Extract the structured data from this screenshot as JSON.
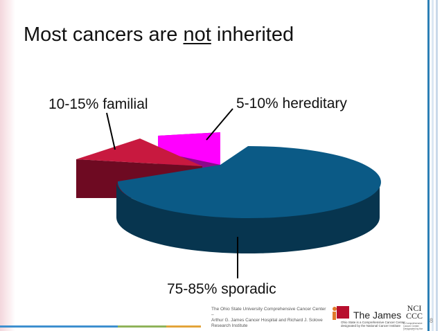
{
  "title": {
    "before": "Most cancers are ",
    "emph": "not",
    "after": " inherited"
  },
  "chart_data": {
    "type": "pie",
    "style": "3d-exploded",
    "slices": [
      {
        "label": "75-85% sporadic",
        "value": 80,
        "color": "#0b5a86"
      },
      {
        "label": "10-15% familial",
        "value": 12.5,
        "color": "#c8193f"
      },
      {
        "label": "5-10% hereditary",
        "value": 7.5,
        "color": "#ff00ff"
      }
    ]
  },
  "footer": {
    "institution_lines": [
      "The Ohio State University Comprehensive Cancer Center –",
      "Arthur G. James Cancer Hospital and Richard J. Solove",
      "Research Institute"
    ],
    "logo_text": "The James",
    "logo_sub_lines": [
      "Ohio State is a Comprehensive Cancer Center",
      "designated by the National Cancer Institute"
    ],
    "nci_text_top": "NCI",
    "nci_text_bottom": "CCC",
    "nci_sub": "A Comprehensive Cancer Center Designated by the National Cancer Institute",
    "page_number": "8"
  },
  "colors": {
    "sporadic_side": "#07354f",
    "familial_side": "#6e0a22",
    "hereditary_side": "#8a0a8a"
  }
}
